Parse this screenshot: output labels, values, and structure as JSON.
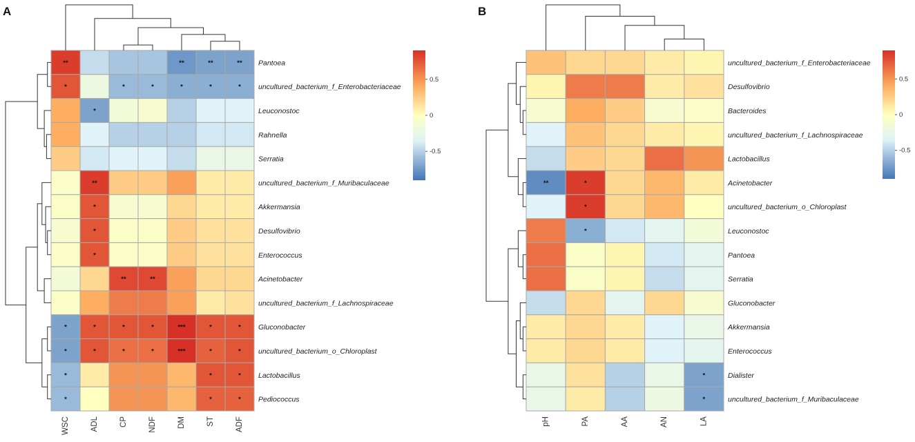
{
  "colors": {
    "low": "#4575b4",
    "mid_low": "#e0f3f8",
    "mid": "#ffffbf",
    "mid_high": "#fdae61",
    "high": "#d73027",
    "grid": "#a8a8a8"
  },
  "chart_data": [
    {
      "type": "heatmap",
      "panel": "A",
      "rows": [
        "Pantoea",
        "uncultured_bacterium_f_Enterobacteriaceae",
        "Leuconostoc",
        "Rahnella",
        "Serratia",
        "uncultured_bacterium_f_Muribaculaceae",
        "Akkermansia",
        "Desulfovibrio",
        "Enterococcus",
        "Acinetobacter",
        "uncultured_bacterium_f_Lachnospiraceae",
        "Gluconobacter",
        "uncultured_bacterium_o_Chloroplast",
        "Lactobacillus",
        "Pediococcus"
      ],
      "columns": [
        "WSC",
        "ADL",
        "CP",
        "NDF",
        "DM",
        "ST",
        "ADF"
      ],
      "values": [
        [
          0.85,
          -0.45,
          -0.55,
          -0.55,
          -0.75,
          -0.7,
          -0.7
        ],
        [
          0.75,
          -0.2,
          -0.6,
          -0.6,
          -0.65,
          -0.65,
          -0.65
        ],
        [
          0.4,
          -0.7,
          -0.15,
          -0.1,
          -0.5,
          -0.35,
          -0.35
        ],
        [
          0.4,
          -0.35,
          -0.5,
          -0.5,
          -0.5,
          -0.4,
          -0.4
        ],
        [
          0.25,
          -0.4,
          -0.35,
          -0.35,
          -0.45,
          -0.25,
          -0.25
        ],
        [
          -0.05,
          0.85,
          0.25,
          0.25,
          0.45,
          0.1,
          0.1
        ],
        [
          -0.05,
          0.75,
          -0.1,
          -0.1,
          0.2,
          0.1,
          0.1
        ],
        [
          -0.1,
          0.75,
          -0.05,
          -0.05,
          0.25,
          0.15,
          0.15
        ],
        [
          -0.05,
          0.75,
          -0.05,
          -0.05,
          0.25,
          0.15,
          0.15
        ],
        [
          -0.15,
          0.2,
          0.8,
          0.8,
          0.45,
          0.2,
          0.2
        ],
        [
          -0.05,
          0.4,
          0.6,
          0.6,
          0.45,
          0.1,
          0.15
        ],
        [
          -0.7,
          0.75,
          0.75,
          0.75,
          0.95,
          0.75,
          0.75
        ],
        [
          -0.7,
          0.75,
          0.65,
          0.65,
          0.95,
          0.7,
          0.75
        ],
        [
          -0.6,
          0.1,
          0.5,
          0.5,
          0.35,
          0.75,
          0.75
        ],
        [
          -0.6,
          0.0,
          0.5,
          0.5,
          0.35,
          0.7,
          0.7
        ]
      ],
      "significance": [
        [
          "**",
          "",
          "",
          "",
          "**",
          "**",
          "**"
        ],
        [
          "*",
          "",
          "*",
          "*",
          "*",
          "*",
          "*"
        ],
        [
          "",
          "*",
          "",
          "",
          "",
          "",
          ""
        ],
        [
          "",
          "",
          "",
          "",
          "",
          "",
          ""
        ],
        [
          "",
          "",
          "",
          "",
          "",
          "",
          ""
        ],
        [
          "",
          "**",
          "",
          "",
          "",
          "",
          ""
        ],
        [
          "",
          "*",
          "",
          "",
          "",
          "",
          ""
        ],
        [
          "",
          "*",
          "",
          "",
          "",
          "",
          ""
        ],
        [
          "",
          "*",
          "",
          "",
          "",
          "",
          ""
        ],
        [
          "",
          "",
          "**",
          "**",
          "",
          "",
          ""
        ],
        [
          "",
          "",
          "",
          "",
          "",
          "",
          ""
        ],
        [
          "*",
          "*",
          "*",
          "*",
          "***",
          "*",
          "*"
        ],
        [
          "*",
          "*",
          "*",
          "*",
          "***",
          "*",
          "*"
        ],
        [
          "*",
          "",
          "",
          "",
          "",
          "*",
          "*"
        ],
        [
          "*",
          "",
          "",
          "",
          "",
          "*",
          "*"
        ]
      ],
      "legend": {
        "range": [
          -0.9,
          0.9
        ],
        "ticks": [
          0.5,
          0,
          -0.5
        ],
        "tick_labels": [
          "0.5",
          "0",
          "-0.5"
        ],
        "position": "right"
      }
    },
    {
      "type": "heatmap",
      "panel": "B",
      "rows": [
        "uncultured_bacterium_f_Enterobacteriaceae",
        "Desulfovibrio",
        "Bacteroides",
        "uncultured_bacterium_f_Lachnospiraceae",
        "Lactobacillus",
        "Acinetobacter",
        "uncultured_bacterium_o_Chloroplast",
        "Leuconostoc",
        "Pantoea",
        "Serratia",
        "Gluconobacter",
        "Akkermansia",
        "Enterococcus",
        "Dialister",
        "uncultured_bacterium_f_Muribaculaceae"
      ],
      "columns": [
        "pH",
        "PA",
        "AA",
        "AN",
        "LA"
      ],
      "values": [
        [
          0.3,
          0.2,
          0.2,
          0.1,
          0.05
        ],
        [
          0.05,
          0.6,
          0.6,
          0.1,
          0.15
        ],
        [
          -0.1,
          0.4,
          0.25,
          -0.1,
          -0.05
        ],
        [
          -0.35,
          0.3,
          0.2,
          0.1,
          0.05
        ],
        [
          -0.45,
          0.25,
          0.2,
          0.65,
          0.5
        ],
        [
          -0.8,
          0.85,
          0.2,
          0.35,
          0.1
        ],
        [
          -0.35,
          0.85,
          0.2,
          0.35,
          0.0
        ],
        [
          0.6,
          -0.65,
          -0.4,
          -0.3,
          -0.15
        ],
        [
          0.65,
          -0.05,
          0.05,
          -0.4,
          -0.3
        ],
        [
          0.65,
          -0.05,
          0.05,
          -0.45,
          -0.3
        ],
        [
          -0.45,
          0.2,
          -0.3,
          0.2,
          -0.1
        ],
        [
          0.1,
          0.2,
          0.1,
          -0.35,
          -0.25
        ],
        [
          0.1,
          0.2,
          0.1,
          -0.35,
          -0.3
        ],
        [
          -0.25,
          0.15,
          -0.5,
          -0.25,
          -0.7
        ],
        [
          -0.25,
          0.1,
          -0.5,
          -0.2,
          -0.7
        ]
      ],
      "significance": [
        [
          "",
          "",
          "",
          "",
          ""
        ],
        [
          "",
          "",
          "",
          "",
          ""
        ],
        [
          "",
          "",
          "",
          "",
          ""
        ],
        [
          "",
          "",
          "",
          "",
          ""
        ],
        [
          "",
          "",
          "",
          "",
          ""
        ],
        [
          "**",
          "*",
          "",
          "",
          ""
        ],
        [
          "",
          "*",
          "",
          "",
          ""
        ],
        [
          "",
          "*",
          "",
          "",
          ""
        ],
        [
          "",
          "",
          "",
          "",
          ""
        ],
        [
          "",
          "",
          "",
          "",
          ""
        ],
        [
          "",
          "",
          "",
          "",
          ""
        ],
        [
          "",
          "",
          "",
          "",
          ""
        ],
        [
          "",
          "",
          "",
          "",
          ""
        ],
        [
          "",
          "",
          "",
          "",
          "*"
        ],
        [
          "",
          "",
          "",
          "",
          "*"
        ]
      ],
      "legend": {
        "range": [
          -0.9,
          0.9
        ],
        "ticks": [
          0.5,
          0,
          -0.5
        ],
        "tick_labels": [
          "0.5",
          "0",
          "-0.5"
        ],
        "position": "right"
      }
    }
  ]
}
